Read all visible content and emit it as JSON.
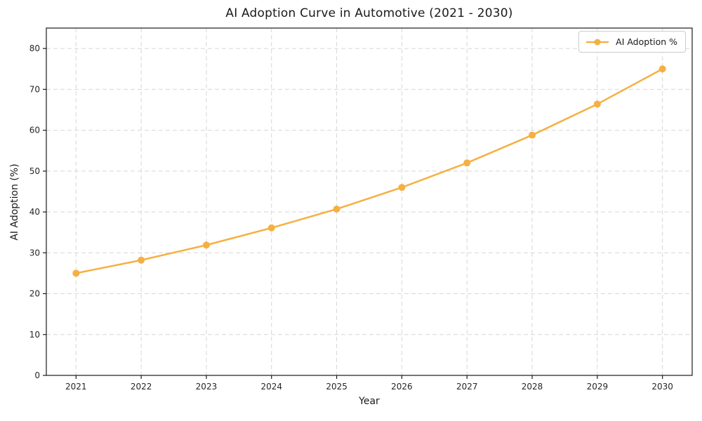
{
  "chart_data": {
    "type": "line",
    "title": "AI Adoption Curve in Automotive (2021 - 2030)",
    "xlabel": "Year",
    "ylabel": "AI Adoption (%)",
    "categories": [
      "2021",
      "2022",
      "2023",
      "2024",
      "2025",
      "2026",
      "2027",
      "2028",
      "2029",
      "2030"
    ],
    "series": [
      {
        "name": "AI Adoption %",
        "values": [
          25.0,
          28.2,
          31.9,
          36.1,
          40.7,
          46.0,
          52.0,
          58.8,
          66.4,
          75.0
        ]
      }
    ],
    "ylim": [
      0,
      85
    ],
    "yticks": [
      0,
      10,
      20,
      30,
      40,
      50,
      60,
      70,
      80
    ],
    "grid": true,
    "grid_style": "dashed",
    "legend_position": "upper right",
    "colors": {
      "line": "#F5B042",
      "marker": "#F5B042",
      "grid": "#d6d6d6",
      "spine": "#1a1a1a",
      "text": "#1a1a1a",
      "legend_border": "#cccccc"
    }
  }
}
